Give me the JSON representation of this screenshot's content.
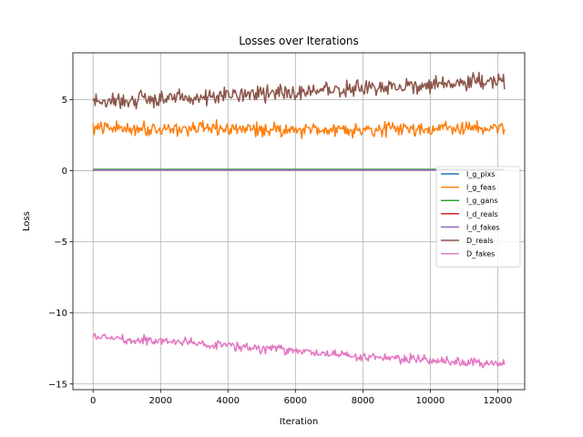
{
  "chart_data": {
    "type": "line",
    "title": "Losses over Iterations",
    "xlabel": "Iteration",
    "ylabel": "Loss",
    "xlim": [
      -600,
      12800
    ],
    "ylim": [
      -15.4,
      8.3
    ],
    "xticks": [
      0,
      2000,
      4000,
      6000,
      8000,
      10000,
      12000
    ],
    "xtick_labels": [
      "0",
      "2000",
      "4000",
      "6000",
      "8000",
      "10000",
      "12000"
    ],
    "yticks": [
      5,
      0,
      -5,
      -10,
      -15
    ],
    "ytick_labels": [
      "5",
      "0",
      "−5",
      "−10",
      "−15"
    ],
    "grid": true,
    "legend_position": "center-right",
    "x_range": [
      0,
      12200
    ],
    "series": [
      {
        "name": "l_g_pixs",
        "color": "#1f77b4",
        "trend": [
          [
            0,
            0.05
          ],
          [
            12200,
            0.05
          ]
        ],
        "noise": 0.0
      },
      {
        "name": "l_g_feas",
        "color": "#ff7f0e",
        "trend": [
          [
            0,
            3.0
          ],
          [
            6000,
            2.9
          ],
          [
            12200,
            3.0
          ]
        ],
        "noise": 0.45
      },
      {
        "name": "l_g_gans",
        "color": "#2ca02c",
        "trend": [
          [
            0,
            0.1
          ],
          [
            12200,
            0.1
          ]
        ],
        "noise": 0.0
      },
      {
        "name": "l_d_reals",
        "color": "#d62728",
        "trend": [
          [
            0,
            0.05
          ],
          [
            12200,
            0.05
          ]
        ],
        "noise": 0.0
      },
      {
        "name": "l_d_fakes",
        "color": "#9467bd",
        "trend": [
          [
            0,
            0.05
          ],
          [
            12200,
            0.05
          ]
        ],
        "noise": 0.0
      },
      {
        "name": "D_reals",
        "color": "#8c564b",
        "trend": [
          [
            0,
            4.8
          ],
          [
            4000,
            5.3
          ],
          [
            8000,
            5.8
          ],
          [
            12200,
            6.3
          ]
        ],
        "noise": 0.55
      },
      {
        "name": "D_fakes",
        "color": "#e377c2",
        "trend": [
          [
            0,
            -11.7
          ],
          [
            4000,
            -12.3
          ],
          [
            8000,
            -13.1
          ],
          [
            12200,
            -13.6
          ]
        ],
        "noise": 0.3
      }
    ]
  }
}
